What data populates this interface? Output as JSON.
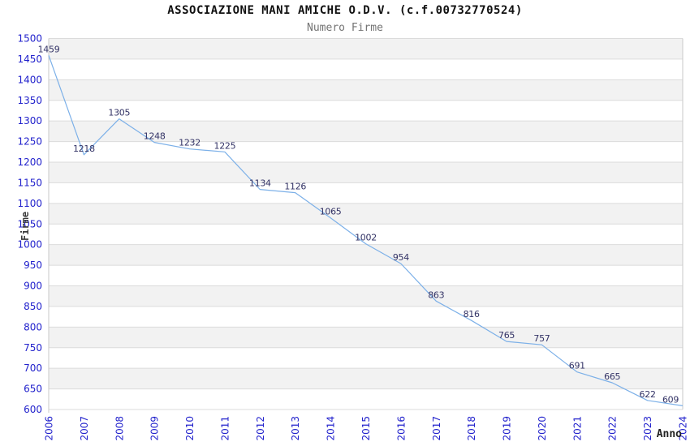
{
  "header": {
    "title": "ASSOCIAZIONE MANI AMICHE O.D.V. (c.f.00732770524)",
    "subtitle": "Numero Firme"
  },
  "chart_data": {
    "type": "line",
    "title": "ASSOCIAZIONE MANI AMICHE O.D.V. (c.f.00732770524)",
    "subtitle": "Numero Firme",
    "xlabel": "Anno",
    "ylabel": "Firme",
    "x": [
      2006,
      2007,
      2008,
      2009,
      2010,
      2011,
      2012,
      2013,
      2014,
      2015,
      2016,
      2017,
      2018,
      2019,
      2020,
      2021,
      2022,
      2023,
      2024
    ],
    "series": [
      {
        "name": "Numero Firme",
        "values": [
          1459,
          1218,
          1305,
          1248,
          1232,
          1225,
          1134,
          1126,
          1065,
          1002,
          954,
          863,
          816,
          765,
          757,
          691,
          665,
          622,
          609
        ]
      }
    ],
    "ylim": [
      600,
      1500
    ],
    "ytick_step": 50,
    "grid": true,
    "legend": "none",
    "point_labels": true,
    "x_tick_rotation": -90,
    "background_bands": "alternating gray starting at top",
    "colors": {
      "line": "#7CB0E8",
      "point_label": "#333366",
      "tick_label": "#2222CC",
      "band": "#F2F2F2",
      "gridline": "#DBDBDB",
      "plot_border": "#C9C9C9",
      "title": "#111111",
      "subtitle": "#737373",
      "axis_title": "#3A3A3A"
    }
  }
}
